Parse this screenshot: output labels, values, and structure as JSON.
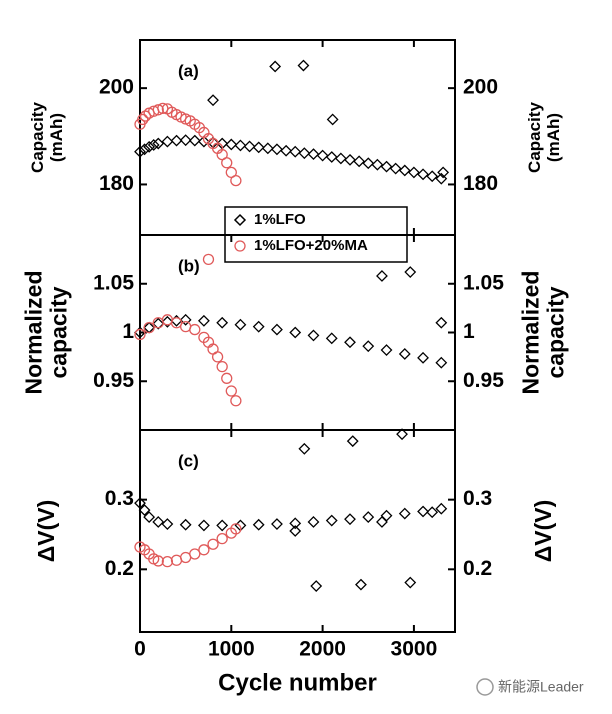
{
  "chart_data": [
    {
      "type": "scatter",
      "panel_label": "(a)",
      "ylabel": [
        "Capacity",
        "(mAh)"
      ],
      "xlim": [
        0,
        3450
      ],
      "xticks": [
        0,
        1000,
        2000,
        3000
      ],
      "ylim": [
        169.5,
        210
      ],
      "yticks": [
        180,
        200
      ],
      "legend": "center",
      "series": [
        {
          "name": "1%LFO",
          "marker": "diamond",
          "color": "#000000",
          "x": [
            0,
            50,
            100,
            150,
            200,
            300,
            400,
            500,
            600,
            700,
            800,
            900,
            1000,
            1100,
            1200,
            1300,
            1400,
            1500,
            1600,
            1700,
            1800,
            1900,
            2000,
            2100,
            2200,
            2300,
            2400,
            2500,
            2600,
            2700,
            2800,
            2900,
            3000,
            3100,
            3200,
            3300,
            800,
            1480,
            1790,
            2110,
            3320
          ],
          "values": [
            186.8,
            187.3,
            187.8,
            188.2,
            188.5,
            188.9,
            189.1,
            189.2,
            189.1,
            188.9,
            188.7,
            188.5,
            188.3,
            188.1,
            187.9,
            187.7,
            187.5,
            187.3,
            187.0,
            186.8,
            186.5,
            186.3,
            186.0,
            185.7,
            185.4,
            185.1,
            184.8,
            184.4,
            184.1,
            183.7,
            183.3,
            182.9,
            182.5,
            182.1,
            181.7,
            181.2,
            197.5,
            204.5,
            204.7,
            193.5,
            182.5
          ]
        },
        {
          "name": "1%LFO+20%MA",
          "marker": "circle",
          "color": "#e05a5a",
          "x": [
            0,
            30,
            60,
            100,
            150,
            200,
            250,
            300,
            350,
            400,
            450,
            500,
            550,
            600,
            650,
            700,
            750,
            800,
            850,
            900,
            950,
            1000,
            1050
          ],
          "values": [
            192.5,
            193.5,
            194.2,
            194.8,
            195.2,
            195.5,
            195.8,
            195.7,
            195.0,
            194.5,
            194.0,
            193.6,
            193.2,
            192.5,
            191.8,
            190.8,
            189.5,
            188.5,
            187.5,
            186.2,
            184.5,
            182.5,
            180.8
          ]
        }
      ]
    },
    {
      "type": "scatter",
      "panel_label": "(b)",
      "ylabel": [
        "Normalized",
        "capacity"
      ],
      "xlim": [
        0,
        3450
      ],
      "xticks": [
        0,
        1000,
        2000,
        3000
      ],
      "ylim": [
        0.9,
        1.1
      ],
      "yticks": [
        0.95,
        1,
        1.05
      ],
      "series": [
        {
          "name": "1%LFO",
          "marker": "diamond",
          "color": "#000000",
          "x": [
            0,
            100,
            200,
            300,
            400,
            500,
            700,
            900,
            1100,
            1300,
            1500,
            1700,
            1900,
            2100,
            2300,
            2500,
            2700,
            2900,
            3100,
            3300,
            2650,
            2960,
            3300
          ],
          "values": [
            1.0,
            1.005,
            1.009,
            1.011,
            1.012,
            1.013,
            1.012,
            1.01,
            1.008,
            1.006,
            1.003,
            1.0,
            0.997,
            0.994,
            0.99,
            0.986,
            0.982,
            0.978,
            0.974,
            0.969,
            1.058,
            1.062,
            1.01
          ]
        },
        {
          "name": "1%LFO+20%MA",
          "marker": "circle",
          "color": "#e05a5a",
          "x": [
            0,
            100,
            200,
            300,
            400,
            500,
            600,
            700,
            750,
            800,
            850,
            900,
            950,
            1000,
            1050,
            750
          ],
          "values": [
            0.998,
            1.005,
            1.01,
            1.013,
            1.01,
            1.006,
            1.003,
            0.995,
            0.99,
            0.983,
            0.975,
            0.965,
            0.953,
            0.94,
            0.93,
            1.075
          ]
        }
      ]
    },
    {
      "type": "scatter",
      "panel_label": "(c)",
      "ylabel": [
        "ΔV(V)"
      ],
      "xlabel": "Cycle number",
      "xlim": [
        0,
        3450
      ],
      "xticks": [
        0,
        1000,
        2000,
        3000
      ],
      "ylim": [
        0.11,
        0.4
      ],
      "yticks": [
        0.2,
        0.3
      ],
      "series": [
        {
          "name": "1%LFO",
          "marker": "diamond",
          "color": "#000000",
          "x": [
            0,
            50,
            100,
            200,
            300,
            500,
            700,
            900,
            1100,
            1300,
            1500,
            1700,
            1900,
            2100,
            2300,
            2500,
            2700,
            2900,
            3100,
            3300,
            1800,
            2330,
            2870,
            1930,
            2420,
            2960,
            2650,
            3200,
            1700
          ],
          "values": [
            0.295,
            0.285,
            0.275,
            0.268,
            0.265,
            0.264,
            0.263,
            0.263,
            0.263,
            0.264,
            0.265,
            0.266,
            0.268,
            0.27,
            0.272,
            0.275,
            0.277,
            0.28,
            0.283,
            0.287,
            0.373,
            0.384,
            0.394,
            0.176,
            0.178,
            0.181,
            0.268,
            0.282,
            0.255
          ]
        },
        {
          "name": "1%LFO+20%MA",
          "marker": "circle",
          "color": "#e05a5a",
          "x": [
            0,
            50,
            100,
            150,
            200,
            300,
            400,
            500,
            600,
            700,
            800,
            900,
            1000,
            1050
          ],
          "values": [
            0.232,
            0.228,
            0.222,
            0.215,
            0.212,
            0.211,
            0.213,
            0.217,
            0.222,
            0.228,
            0.236,
            0.244,
            0.252,
            0.258
          ]
        }
      ]
    }
  ],
  "watermark": "新能源Leader"
}
